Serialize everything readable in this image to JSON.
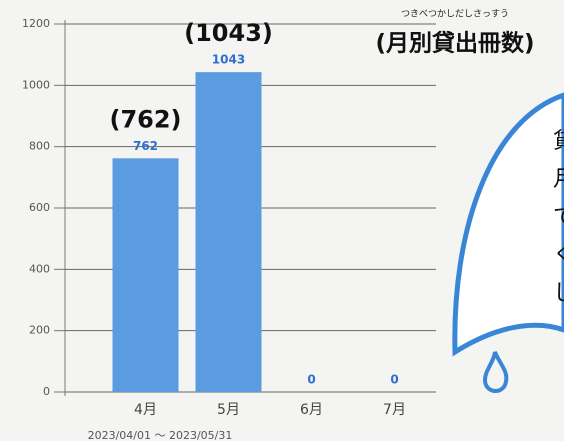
{
  "chart_data": {
    "type": "bar",
    "title": "(月別貸出冊数)",
    "title_ruby": "つきべつかしだしさっすう",
    "x_label": "2023/04/01 〜 2023/05/31",
    "categories": [
      "4月",
      "5月",
      "6月",
      "7月"
    ],
    "values": [
      762,
      1043,
      0,
      0
    ],
    "color": "#5b9be0",
    "annotations": [
      "(762)",
      "(1043)"
    ],
    "bubble_text": [
      "貸",
      "月",
      "で",
      "く",
      "し"
    ],
    "ylim": [
      0,
      1200
    ],
    "yticks": [
      0,
      200,
      400,
      600,
      800,
      1000,
      1200
    ],
    "grid": true
  }
}
